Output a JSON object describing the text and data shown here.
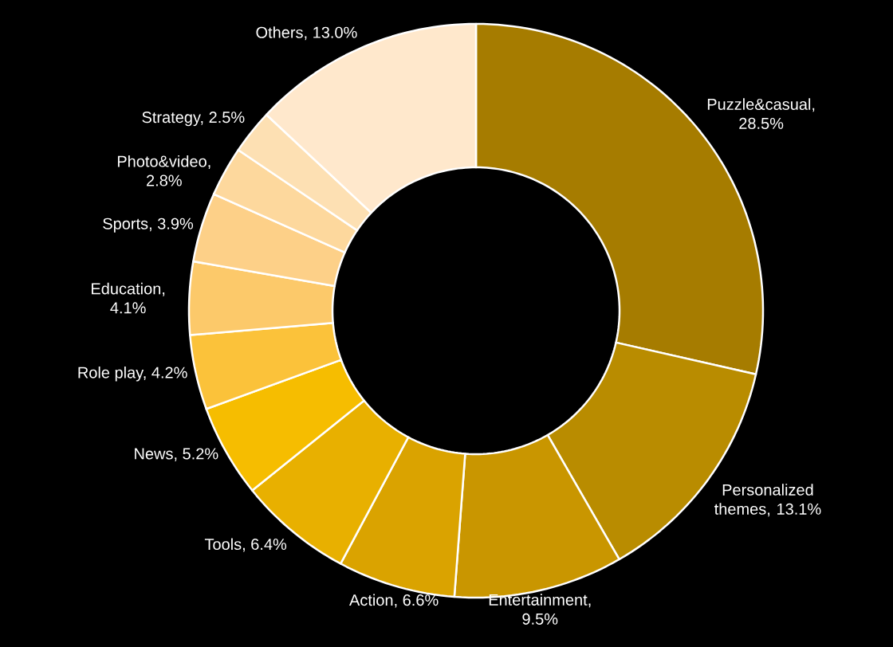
{
  "chart_data": {
    "type": "donut",
    "categories": [
      null,
      null,
      null,
      null,
      null,
      null,
      null,
      null,
      null,
      null,
      null,
      null
    ],
    "values": [
      28.5,
      13.1,
      9.5,
      6.6,
      6.4,
      5.2,
      4.2,
      4.1,
      3.9,
      2.8,
      2.5,
      13.0
    ],
    "value_labels": [
      "Puzzle&casual, 28.5%",
      "Personalized themes, 13.1%",
      "Entertainment, 9.5%",
      "Action, 6.6%",
      "Tools, 6.4%",
      "News, 5.2%",
      "Role play, 4.2%",
      "Education, 4.1%",
      "Sports, 3.9%",
      "Photo&video, 2.8%",
      "Strategy, 2.5%",
      "Others, 13.0%"
    ],
    "colors": [
      "#a67c00",
      "#b98c00",
      "#c99600",
      "#daa300",
      "#e8b000",
      "#f6bd00",
      "#fbc23a",
      "#fcc96a",
      "#fdd088",
      "#fdd89d",
      "#fde0b3",
      "#ffe8cc"
    ]
  }
}
